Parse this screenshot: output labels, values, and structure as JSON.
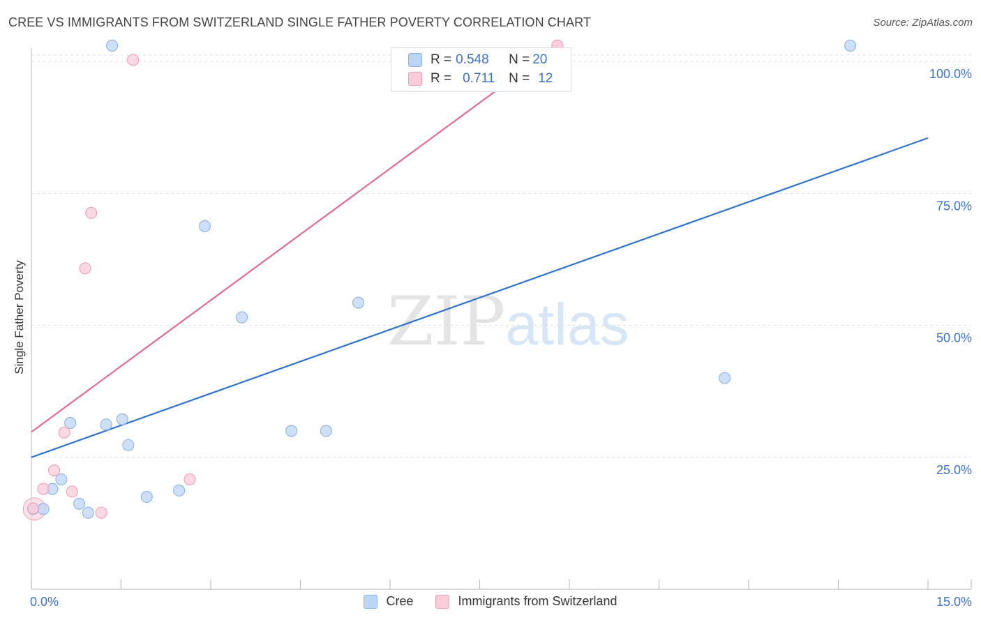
{
  "title": "CREE VS IMMIGRANTS FROM SWITZERLAND SINGLE FATHER POVERTY CORRELATION CHART",
  "source": "Source: ZipAtlas.com",
  "watermark": {
    "zip": "ZIP",
    "atlas": "atlas"
  },
  "legend": {
    "rows": [
      {
        "r_label": "R = ",
        "r_value": "0.548",
        "n_label": "N = ",
        "n_value": "20"
      },
      {
        "r_label": "R = ",
        "r_value": "0.711",
        "n_label": "N = ",
        "n_value": "12"
      }
    ]
  },
  "bottom_legend": {
    "cree": "Cree",
    "swiss": "Immigrants from Switzerland"
  },
  "colors": {
    "cree_fill": "#bcd5f5",
    "cree_stroke": "#8ab2e6",
    "cree_line": "#2e74d0",
    "swiss_fill": "#f9ccd9",
    "swiss_stroke": "#ef9db5",
    "swiss_line": "#e36b91",
    "tick_label": "#3a73c9"
  },
  "chart_data": {
    "type": "scatter",
    "title": "CREE VS IMMIGRANTS FROM SWITZERLAND SINGLE FATHER POVERTY CORRELATION CHART",
    "xlabel": "",
    "ylabel": "Single Father Poverty",
    "xlim": [
      0,
      15
    ],
    "ylim": [
      0,
      102
    ],
    "x_tick_labels": [
      "0.0%",
      "15.0%"
    ],
    "y_ticks": [
      25,
      50,
      75,
      100
    ],
    "y_tick_labels": [
      "25.0%",
      "50.0%",
      "75.0%",
      "100.0%"
    ],
    "grid": true,
    "series": [
      {
        "name": "Cree",
        "r": 0.548,
        "n": 20,
        "points": [
          [
            0.03,
            15.2
          ],
          [
            0.2,
            15.2
          ],
          [
            0.35,
            19.0
          ],
          [
            0.5,
            20.8
          ],
          [
            0.65,
            31.5
          ],
          [
            0.8,
            16.2
          ],
          [
            0.95,
            14.5
          ],
          [
            1.25,
            31.2
          ],
          [
            1.35,
            103.0
          ],
          [
            1.52,
            32.2
          ],
          [
            1.62,
            27.3
          ],
          [
            1.93,
            17.5
          ],
          [
            2.47,
            18.7
          ],
          [
            2.9,
            68.8
          ],
          [
            3.52,
            51.5
          ],
          [
            4.35,
            30.0
          ],
          [
            4.93,
            30.0
          ],
          [
            5.47,
            54.3
          ],
          [
            11.6,
            40.0
          ],
          [
            13.7,
            103.0
          ]
        ],
        "trend": {
          "x": [
            0,
            15
          ],
          "y": [
            25.0,
            85.5
          ]
        }
      },
      {
        "name": "Immigrants from Switzerland",
        "r": 0.711,
        "n": 12,
        "points": [
          [
            0.03,
            15.3
          ],
          [
            0.2,
            19.0
          ],
          [
            0.38,
            22.5
          ],
          [
            0.55,
            29.7
          ],
          [
            0.68,
            18.5
          ],
          [
            0.9,
            60.8
          ],
          [
            1.0,
            71.3
          ],
          [
            1.17,
            14.5
          ],
          [
            1.7,
            100.3
          ],
          [
            2.65,
            20.8
          ],
          [
            8.8,
            103.0
          ],
          [
            8.8,
            103.0
          ]
        ],
        "trend": {
          "x": [
            0,
            8.8
          ],
          "y": [
            29.8,
            103.0
          ]
        }
      }
    ]
  }
}
